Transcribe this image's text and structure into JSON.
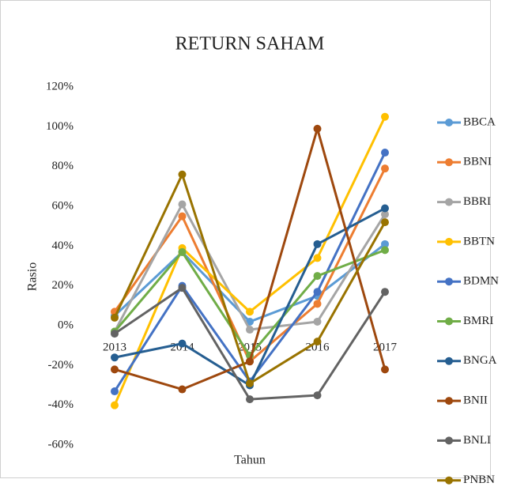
{
  "chart_data": {
    "type": "line",
    "title": "RETURN SAHAM",
    "x_label": "Tahun",
    "y_label": "Rasio",
    "categories": [
      "2013",
      "2014",
      "2015",
      "2016",
      "2017"
    ],
    "ylim": [
      -60,
      120
    ],
    "yticks": [
      {
        "value": -60,
        "label": "-60%"
      },
      {
        "value": -40,
        "label": "-40%"
      },
      {
        "value": -20,
        "label": "-20%"
      },
      {
        "value": 0,
        "label": "0%"
      },
      {
        "value": 20,
        "label": "20%"
      },
      {
        "value": 40,
        "label": "40%"
      },
      {
        "value": 60,
        "label": "60%"
      },
      {
        "value": 80,
        "label": "80%"
      },
      {
        "value": 100,
        "label": "100%"
      },
      {
        "value": 120,
        "label": "120%"
      }
    ],
    "grid": false,
    "legend": "right",
    "series": [
      {
        "name": "BBCA",
        "color": "#5b9bd5",
        "values": [
          5,
          37,
          2,
          15,
          41
        ]
      },
      {
        "name": "BBNI",
        "color": "#ed7d31",
        "values": [
          7,
          55,
          -18,
          11,
          79
        ]
      },
      {
        "name": "BBRI",
        "color": "#a5a5a5",
        "values": [
          -3,
          61,
          -2,
          2,
          56
        ]
      },
      {
        "name": "BBTN",
        "color": "#ffc000",
        "values": [
          -40,
          39,
          7,
          34,
          105
        ]
      },
      {
        "name": "BDMN",
        "color": "#4472c4",
        "values": [
          -33,
          20,
          -28,
          17,
          87
        ]
      },
      {
        "name": "BMRI",
        "color": "#70ad47",
        "values": [
          -3,
          37,
          -15,
          25,
          38
        ]
      },
      {
        "name": "BNGA",
        "color": "#255e91",
        "values": [
          -16,
          -9,
          -30,
          41,
          59
        ]
      },
      {
        "name": "BNII",
        "color": "#9e480e",
        "values": [
          -22,
          -32,
          -18,
          99,
          -22
        ]
      },
      {
        "name": "BNLI",
        "color": "#636363",
        "values": [
          -4,
          19,
          -37,
          -35,
          17
        ]
      },
      {
        "name": "PNBN",
        "color": "#997300",
        "values": [
          4,
          76,
          -29,
          -8,
          52
        ]
      }
    ]
  }
}
